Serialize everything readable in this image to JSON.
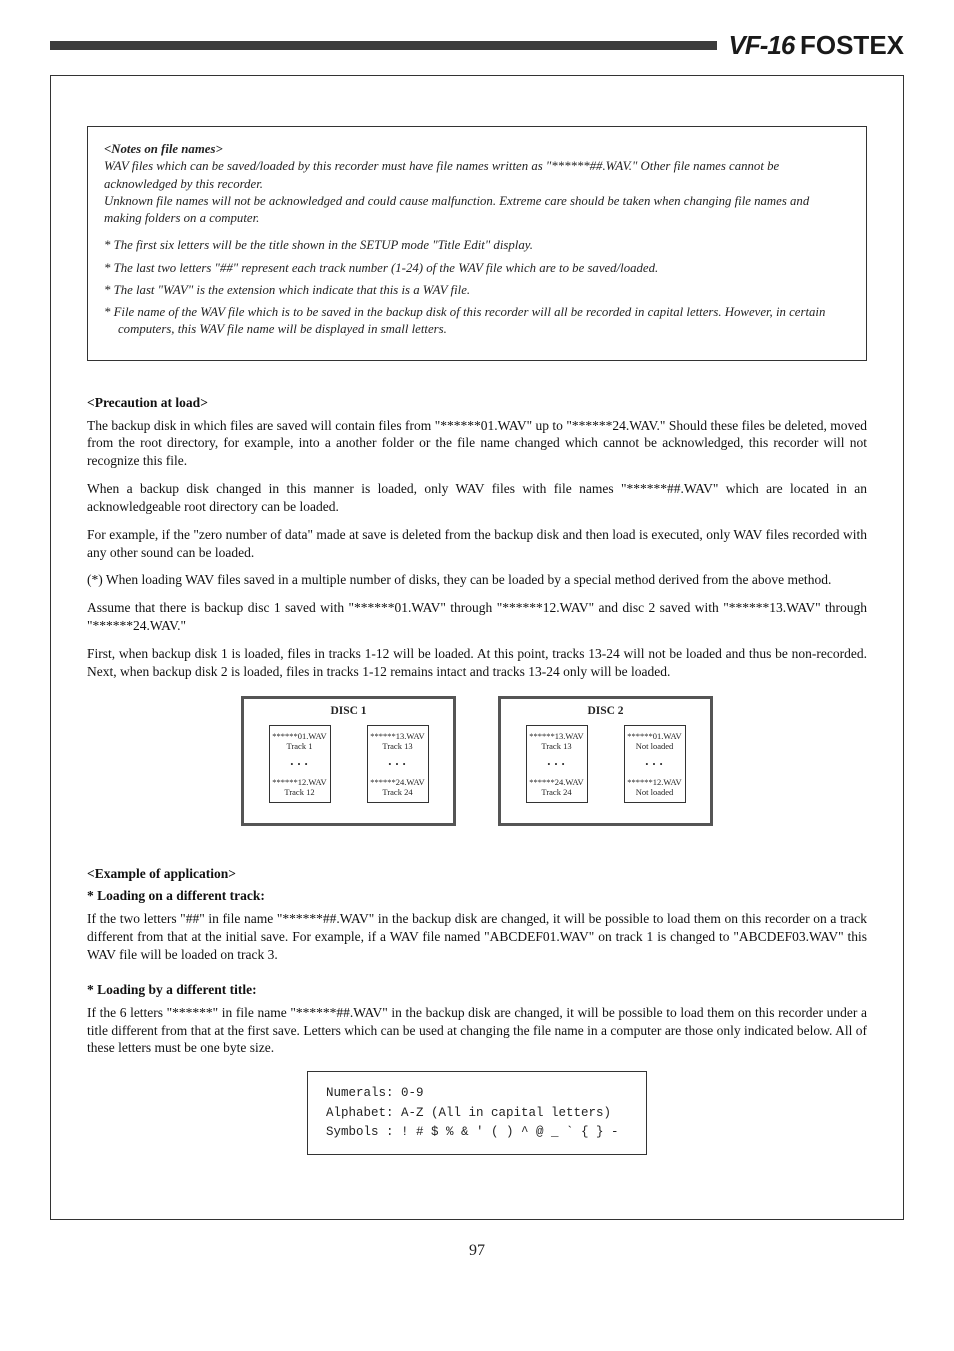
{
  "header": {
    "model": "VF-16",
    "brand": "FOSTEX"
  },
  "noteBox": {
    "title": "<Notes on file names>",
    "intro": "WAV files which can be saved/loaded by this recorder must have file names written as \"******##.WAV.\" Other file names cannot be acknowledged by this recorder.\nUnknown file names will not be acknowledged and could cause malfunction.  Extreme care should be taken when changing file names and making folders on a computer.",
    "items": [
      "*  The first six letters will be the title shown in the SETUP mode \"Title Edit\" display.",
      "*  The last two letters \"##\" represent each track number (1-24) of the WAV file which are to be saved/loaded.",
      "*  The last \"WAV\" is the extension which indicate that this is a WAV file.",
      "*  File name of the WAV file which is to be saved in the backup disk of this recorder will all be recorded in capital letters.  However, in certain computers, this WAV file name will be displayed in small letters."
    ]
  },
  "precaution": {
    "title": "<Precaution at load>",
    "p1": "The backup disk in which files are saved will contain files from \"******01.WAV\" up to \"******24.WAV.\" Should these files be deleted, moved from the root directory, for example, into a another folder or the file name changed which cannot be acknowledged, this recorder will not recognize this file.",
    "p2": "When a backup disk changed in this manner is loaded, only WAV files with file names \"******##.WAV\" which are located in an acknowledgeable root directory can be loaded.",
    "p3": "For example, if the \"zero number of data\" made at save is deleted from the backup disk and then load is executed, only WAV files recorded with any other sound can be loaded.",
    "p4": "(*) When loading WAV files saved in a multiple number of disks, they can be loaded by a special method derived from the above method.",
    "p5": "Assume that there is backup disc 1 saved with \"******01.WAV\" through \"******12.WAV\" and disc 2 saved with \"******13.WAV\" through \"******24.WAV.\"",
    "p6": "First, when backup disk 1 is loaded, files in tracks 1-12 will be loaded.  At this point, tracks 13-24 will not be loaded and thus be non-recorded.  Next, when backup disk 2 is loaded, files in tracks 1-12 remains intact and tracks 13-24 only will be loaded."
  },
  "disks": {
    "d1": {
      "outer": "DISC 1",
      "inner1_top": "******01.WAV",
      "inner1_line2": "Track 1",
      "inner1_line3": "******12.WAV",
      "inner1_line4": "Track 12",
      "inner2_top": "******13.WAV",
      "inner2_line2": "Track 13",
      "inner2_line3": "******24.WAV",
      "inner2_line4": "Track 24"
    },
    "d2": {
      "outer": "DISC 2",
      "inner1_top": "******13.WAV",
      "inner1_line2": "Track 13",
      "inner1_line3": "******24.WAV",
      "inner1_line4": "Track 24",
      "inner2_top": "******01.WAV",
      "inner2_line2": "Not loaded",
      "inner2_line3": "******12.WAV",
      "inner2_line4": "Not loaded"
    }
  },
  "application": {
    "title": "<Example of application>",
    "sub1": "* Loading on a different track:",
    "p1": "If the two letters \"##\" in file name \"******##.WAV\" in the backup disk are changed, it will be possible to load them on this recorder on a track different from that at the initial save.  For example, if a WAV file named \"ABCDEF01.WAV\" on track 1 is changed to \"ABCDEF03.WAV\" this WAV file will be loaded on track 3.",
    "sub2": "* Loading by a different title:",
    "p2": "If the 6 letters \"******\" in file name \"******##.WAV\" in the backup disk are changed, it will be possible to load them on this recorder under a title different from that at the first save.  Letters which can be used at changing the file name in a computer are those only indicated below.  All of these letters must be one byte size."
  },
  "charBox": {
    "line1": "Numerals: 0-9",
    "line2": "Alphabet: A-Z (All in capital letters)",
    "line3": "Symbols : ! # $ % & ' ( ) ^ @ _ ` { } -"
  },
  "pageNumber": "97",
  "colors": {
    "rule": "#3b3b3b",
    "text": "#111111",
    "border": "#333333"
  }
}
